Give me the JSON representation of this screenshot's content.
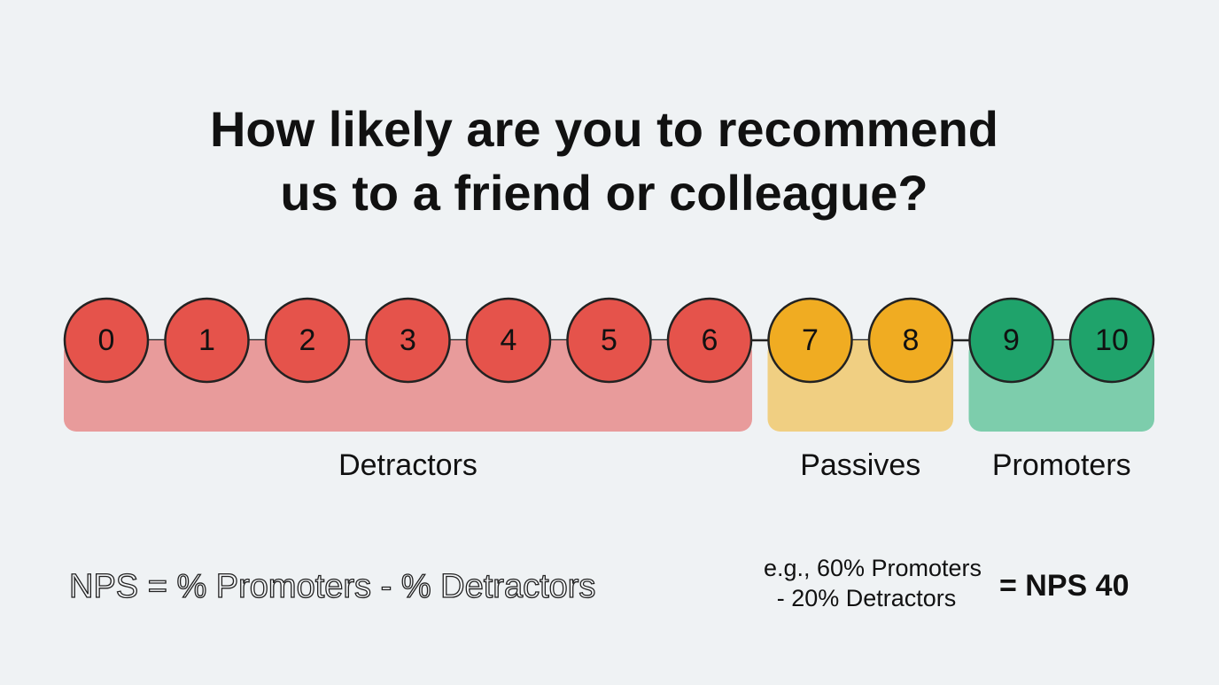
{
  "title": {
    "lines": [
      "How likely are you to recommend",
      "us to a friend or colleague?"
    ]
  },
  "groups": [
    {
      "label": "Detractors",
      "circle_color": "#e5534b",
      "band_color": "#e89b9b",
      "points": [
        0,
        1,
        2,
        3,
        4,
        5,
        6
      ]
    },
    {
      "label": "Passives",
      "circle_color": "#f0ac22",
      "band_color": "#f0cf82",
      "points": [
        7,
        8
      ]
    },
    {
      "label": "Promoters",
      "circle_color": "#1fa36b",
      "band_color": "#7dcdac",
      "points": [
        9,
        10
      ]
    }
  ],
  "formula": "NPS = % Promoters - % Detractors",
  "example": {
    "lines": [
      "e.g., 60% Promoters",
      "- 20% Detractors"
    ],
    "result": "= NPS 40"
  }
}
